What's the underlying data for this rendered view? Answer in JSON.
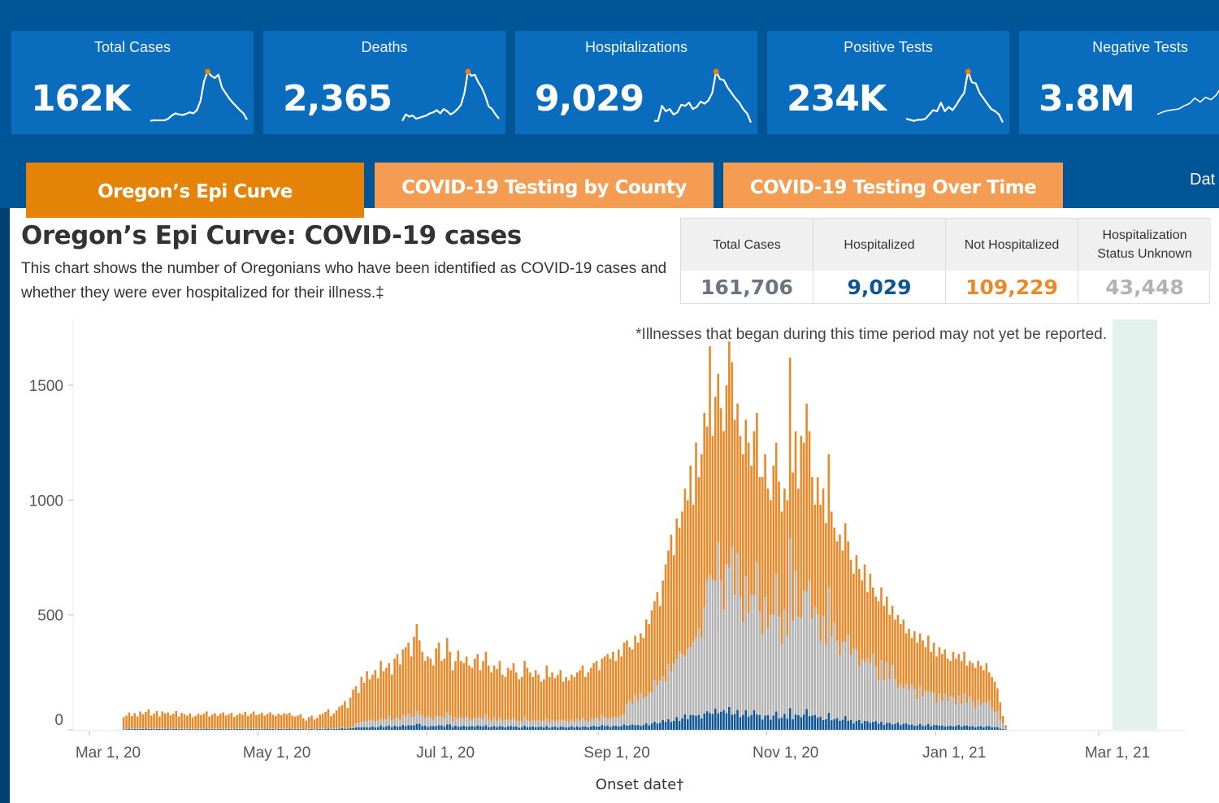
{
  "kpis": [
    {
      "title": "Total Cases",
      "value": "162K",
      "trend": [
        8,
        9,
        9,
        9,
        9,
        12,
        18,
        22,
        20,
        19,
        21,
        24,
        22,
        28,
        45,
        82,
        100,
        92,
        88,
        94,
        70,
        60,
        50,
        42,
        35,
        28,
        22,
        10
      ]
    },
    {
      "title": "Deaths",
      "value": "2,365",
      "trend": [
        8,
        20,
        16,
        18,
        12,
        14,
        16,
        18,
        22,
        24,
        28,
        22,
        30,
        26,
        20,
        24,
        30,
        38,
        60,
        100,
        92,
        94,
        80,
        70,
        55,
        35,
        30,
        20,
        12
      ]
    },
    {
      "title": "Hospitalizations",
      "value": "9,029",
      "trend": [
        8,
        8,
        36,
        26,
        30,
        20,
        24,
        38,
        36,
        42,
        30,
        34,
        44,
        40,
        46,
        60,
        100,
        86,
        84,
        70,
        60,
        50,
        42,
        30,
        22,
        5
      ]
    },
    {
      "title": "Positive Tests",
      "value": "234K",
      "trend": [
        12,
        10,
        8,
        10,
        10,
        12,
        20,
        28,
        26,
        42,
        26,
        34,
        28,
        38,
        50,
        60,
        100,
        80,
        78,
        60,
        50,
        40,
        30,
        26,
        20,
        5
      ]
    },
    {
      "title": "Negative Tests",
      "value": "3.8M",
      "trend": [
        8,
        14,
        18,
        20,
        22,
        30,
        36,
        50,
        40,
        52,
        46,
        58,
        80,
        100
      ]
    }
  ],
  "kpi_accent": "#e58308",
  "tabs": [
    {
      "label": "Oregon’s Epi Curve",
      "active": true
    },
    {
      "label": "COVID-19 Testing by County",
      "active": false
    },
    {
      "label": "COVID-19 Testing Over Time",
      "active": false
    }
  ],
  "header_overflow_label": "Dat",
  "page": {
    "title": "Oregon’s Epi Curve: COVID-19 cases",
    "description": "This chart shows the number of Oregonians who have been identified as COVID-19 cases and whether they were ever hospitalized for their illness.‡"
  },
  "stats": [
    {
      "header": "Total Cases",
      "value": "161,706",
      "color": "#6b7581"
    },
    {
      "header": "Hospitalized",
      "value": "9,029",
      "color": "#0e5596"
    },
    {
      "header": "Not Hospitalized",
      "value": "109,229",
      "color": "#e8892a"
    },
    {
      "header": "Hospitalization Status Unknown",
      "value": "43,448",
      "color": "#b3b3b3"
    }
  ],
  "chart_data": {
    "type": "bar",
    "stacked": true,
    "title": "Oregon’s Epi Curve: COVID-19 cases",
    "xlabel": "Onset date†",
    "ylabel": "",
    "ylim": [
      0,
      1750
    ],
    "yticks": [
      0,
      500,
      1000,
      1500
    ],
    "xlim": [
      "2020-02-24",
      "2021-04-30"
    ],
    "xticks": [
      {
        "date": "2020-03-01",
        "label": "Mar 1, 20"
      },
      {
        "date": "2020-05-01",
        "label": "May 1, 20"
      },
      {
        "date": "2020-07-01",
        "label": "Jul 1, 20"
      },
      {
        "date": "2020-09-01",
        "label": "Sep 1, 20"
      },
      {
        "date": "2020-11-01",
        "label": "Nov 1, 20"
      },
      {
        "date": "2021-01-01",
        "label": "Jan 1, 21"
      },
      {
        "date": "2021-03-01",
        "label": "Mar 1, 21"
      }
    ],
    "annotation": "*Illnesses that began during this time period may not yet be reported.",
    "shaded_range": [
      "2021-03-06",
      "2021-03-22"
    ],
    "shaded_color": "#e3f2ec",
    "start_date": "2020-03-13",
    "grid": false,
    "series_colors": {
      "hospitalized": "#0e5596",
      "unknown": "#b3b3b3",
      "not_hospitalized": "#e8892a"
    },
    "series": [
      {
        "name": "Hospitalized",
        "key": "hospitalized"
      },
      {
        "name": "Hospitalization Status Unknown",
        "key": "unknown"
      },
      {
        "name": "Not Hospitalized",
        "key": "not_hospitalized"
      }
    ],
    "weekly_daily_totals": [
      [
        55,
        62,
        75,
        60,
        72,
        58,
        80
      ],
      [
        68,
        78,
        90,
        62,
        70,
        82,
        58
      ],
      [
        80,
        72,
        76,
        64,
        70,
        82,
        58
      ],
      [
        74,
        68,
        62,
        72,
        55,
        60,
        70
      ],
      [
        64,
        70,
        80,
        58,
        66,
        72,
        60
      ],
      [
        70,
        76,
        62,
        68,
        74,
        56,
        64
      ],
      [
        72,
        66,
        78,
        60,
        70,
        80,
        64
      ],
      [
        68,
        74,
        62,
        70,
        76,
        66,
        60
      ],
      [
        70,
        64,
        72,
        68,
        74,
        62,
        58
      ],
      [
        62,
        68,
        50,
        40,
        55,
        62,
        45
      ],
      [
        52,
        66,
        70,
        78,
        90,
        60,
        72
      ],
      [
        85,
        100,
        108,
        125,
        95,
        140,
        175
      ],
      [
        190,
        160,
        230,
        205,
        255,
        220,
        240
      ],
      [
        260,
        225,
        300,
        255,
        270,
        290,
        240
      ],
      [
        310,
        330,
        285,
        350,
        360,
        380,
        320
      ],
      [
        405,
        460,
        390,
        340,
        300,
        320,
        310
      ],
      [
        280,
        355,
        380,
        300,
        310,
        400,
        340
      ],
      [
        260,
        300,
        345,
        300,
        290,
        320,
        280
      ],
      [
        270,
        310,
        330,
        260,
        300,
        340,
        280
      ],
      [
        250,
        280,
        265,
        300,
        240,
        230,
        270
      ],
      [
        260,
        290,
        250,
        220,
        230,
        300,
        270
      ],
      [
        250,
        230,
        260,
        240,
        210,
        220,
        280
      ],
      [
        230,
        250,
        225,
        240,
        260,
        210,
        230
      ],
      [
        215,
        240,
        230,
        250,
        260,
        280,
        230
      ],
      [
        250,
        270,
        290,
        300,
        260,
        310,
        320
      ],
      [
        330,
        310,
        340,
        300,
        350,
        320,
        380
      ],
      [
        390,
        360,
        350,
        410,
        380,
        420,
        400
      ],
      [
        480,
        460,
        520,
        560,
        600,
        540,
        650
      ],
      [
        720,
        780,
        850,
        760,
        920,
        880,
        950
      ],
      [
        1050,
        1000,
        1150,
        980,
        1250,
        1100,
        1200
      ],
      [
        1380,
        1320,
        1670,
        1280,
        1450,
        1550,
        1400
      ],
      [
        1300,
        1500,
        1690,
        1600,
        1350,
        1420,
        1280
      ],
      [
        1200,
        1350,
        1250,
        1150,
        1300,
        1380,
        1100
      ],
      [
        1100,
        1200,
        1050,
        1000,
        1150,
        1250,
        1080
      ],
      [
        950,
        1050,
        1000,
        1620,
        1120,
        1300,
        1050
      ],
      [
        1280,
        1250,
        1420,
        1300,
        1100,
        980,
        1100
      ],
      [
        980,
        1050,
        900,
        1200,
        950,
        880,
        820
      ],
      [
        850,
        780,
        900,
        820,
        740,
        680,
        760
      ],
      [
        700,
        650,
        720,
        600,
        680,
        620,
        580
      ],
      [
        560,
        620,
        540,
        580,
        500,
        540,
        480
      ],
      [
        500,
        460,
        480,
        420,
        440,
        400,
        430
      ],
      [
        380,
        420,
        390,
        360,
        410,
        340,
        380
      ],
      [
        320,
        360,
        330,
        350,
        310,
        300,
        340
      ],
      [
        310,
        330,
        300,
        340,
        280,
        300,
        290
      ],
      [
        270,
        300,
        280,
        260,
        290,
        250,
        230
      ],
      [
        210,
        180,
        120,
        60,
        20
      ]
    ],
    "hospitalized_share": 0.055,
    "unknown_share_by_period": [
      {
        "until_week": 12,
        "share": 0.03
      },
      {
        "until_week": 26,
        "share": 0.12
      },
      {
        "until_week": 30,
        "share": 0.3
      },
      {
        "until_week": 40,
        "share": 0.42
      },
      {
        "until_week": 46,
        "share": 0.38
      }
    ]
  }
}
